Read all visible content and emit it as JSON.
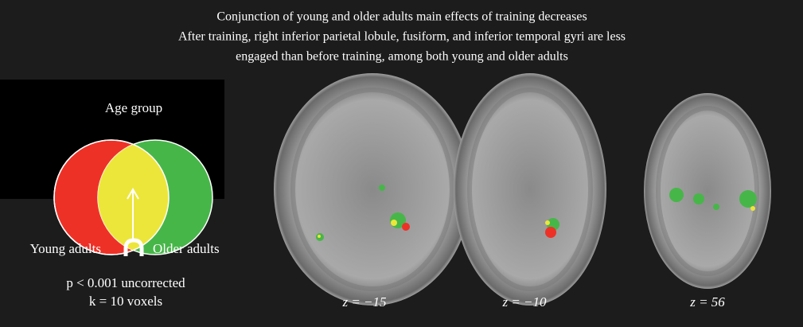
{
  "figure": {
    "title_lines": [
      "Conjunction of young and older adults main effects of training decreases",
      "After training, right inferior parietal lobule, fusiform, and inferior temporal gyri are less",
      "engaged than before training, among both young and older adults"
    ],
    "legend": {
      "heading": "Age group",
      "left_label": "Young adults",
      "right_label": "Older adults",
      "threshold": "p < 0.001 uncorrected",
      "cluster": "k = 10 voxels"
    },
    "slices": [
      "z = −15",
      "z = −10",
      "z = 56"
    ]
  }
}
